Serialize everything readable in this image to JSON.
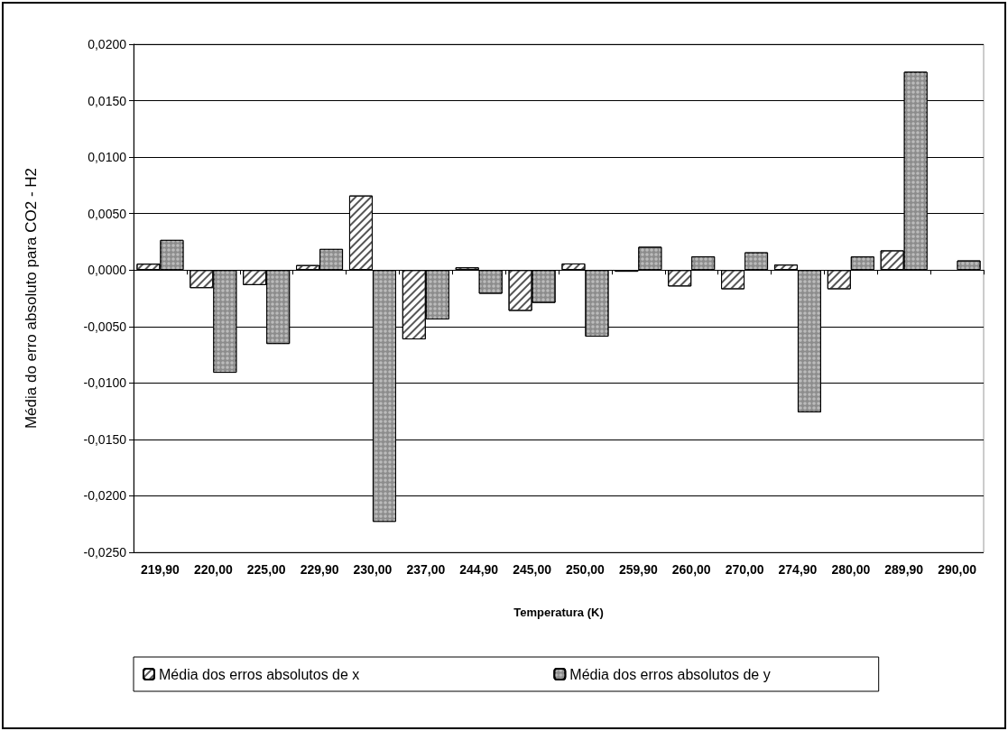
{
  "chart_data": {
    "type": "bar",
    "xlabel": "Temperatura (K)",
    "ylabel": "Média do erro absoluto para CO2 - H2",
    "categories": [
      "219,90",
      "220,00",
      "225,00",
      "229,90",
      "230,00",
      "237,00",
      "244,90",
      "245,00",
      "250,00",
      "259,90",
      "260,00",
      "270,00",
      "274,90",
      "280,00",
      "289,90",
      "290,00"
    ],
    "series": [
      {
        "name": "Média dos erros absolutos de x",
        "color": "#ffffff",
        "values": [
          0.00056,
          -0.0016,
          -0.00133,
          0.00044,
          0.0066,
          -0.00614,
          0.00024,
          -0.00362,
          0.00058,
          -0.00015,
          -0.00145,
          -0.0017,
          0.00048,
          -0.0017,
          0.00174,
          null
        ]
      },
      {
        "name": "Média dos erros absolutos de y",
        "color": "#8c8c8c",
        "values": [
          0.00267,
          -0.0091,
          -0.00655,
          0.00187,
          -0.0223,
          -0.00437,
          -0.0021,
          -0.00291,
          -0.0059,
          0.00206,
          0.00121,
          0.00157,
          -0.0126,
          0.0012,
          0.01756,
          0.00085
        ]
      }
    ],
    "ylim": [
      -0.025,
      0.02
    ],
    "yticks": [
      {
        "value": -0.025,
        "label": "-0,0250"
      },
      {
        "value": -0.02,
        "label": "-0,0200"
      },
      {
        "value": -0.015,
        "label": "-0,0150"
      },
      {
        "value": -0.01,
        "label": "-0,0100"
      },
      {
        "value": -0.005,
        "label": "-0,0050"
      },
      {
        "value": 0,
        "label": "0,0000"
      },
      {
        "value": 0.005,
        "label": "0,0050"
      },
      {
        "value": 0.01,
        "label": "0,0100"
      },
      {
        "value": 0.015,
        "label": "0,0150"
      },
      {
        "value": 0.02,
        "label": "0,0200"
      }
    ],
    "grid": "y",
    "legend": "bottom"
  }
}
